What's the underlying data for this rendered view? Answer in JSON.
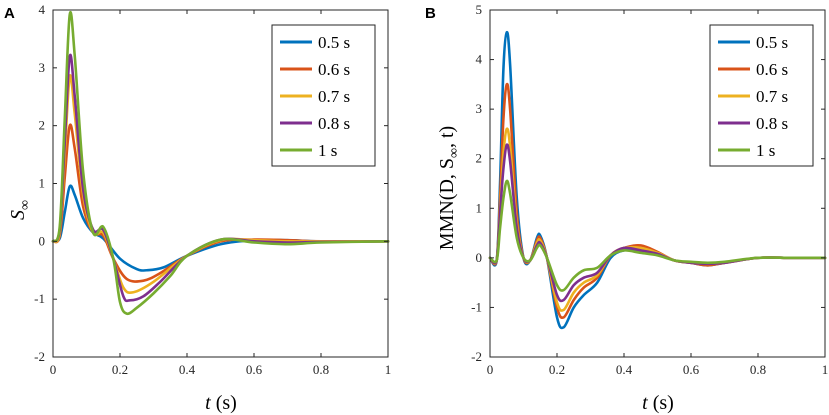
{
  "chart_data": [
    {
      "panel": "A",
      "type": "line",
      "xlabel": "t (s)",
      "xlabel_var": "t",
      "xlabel_unit": "(s)",
      "ylabel": "S∞",
      "ylabel_base": "S",
      "ylabel_sub": "∞",
      "xlim": [
        0,
        1
      ],
      "ylim": [
        -2,
        4
      ],
      "xticks": [
        0,
        0.2,
        0.4,
        0.6,
        0.8,
        1
      ],
      "xtick_labels": [
        "0",
        "0.2",
        "0.4",
        "0.6",
        "0.8",
        "1"
      ],
      "yticks": [
        -2,
        -1,
        0,
        1,
        2,
        3,
        4
      ],
      "ytick_labels": [
        "-2",
        "-1",
        "0",
        "1",
        "2",
        "3",
        "4"
      ],
      "legend_position": "top-right",
      "series": [
        {
          "name": "0.5 s",
          "color": "#0072BD",
          "points": [
            [
              0,
              0
            ],
            [
              0.02,
              0.05
            ],
            [
              0.035,
              0.5
            ],
            [
              0.05,
              0.95
            ],
            [
              0.065,
              0.8
            ],
            [
              0.09,
              0.4
            ],
            [
              0.12,
              0.15
            ],
            [
              0.15,
              0.05
            ],
            [
              0.2,
              -0.3
            ],
            [
              0.25,
              -0.48
            ],
            [
              0.28,
              -0.5
            ],
            [
              0.33,
              -0.45
            ],
            [
              0.4,
              -0.25
            ],
            [
              0.5,
              -0.05
            ],
            [
              0.6,
              0.02
            ],
            [
              0.7,
              0.02
            ],
            [
              0.8,
              0
            ],
            [
              1,
              0
            ]
          ]
        },
        {
          "name": "0.6 s",
          "color": "#D95319",
          "points": [
            [
              0,
              0
            ],
            [
              0.02,
              0.1
            ],
            [
              0.035,
              1.1
            ],
            [
              0.05,
              2.0
            ],
            [
              0.065,
              1.6
            ],
            [
              0.09,
              0.6
            ],
            [
              0.12,
              0.15
            ],
            [
              0.15,
              0.1
            ],
            [
              0.18,
              -0.3
            ],
            [
              0.22,
              -0.65
            ],
            [
              0.27,
              -0.68
            ],
            [
              0.32,
              -0.55
            ],
            [
              0.4,
              -0.25
            ],
            [
              0.5,
              0.0
            ],
            [
              0.6,
              0.03
            ],
            [
              0.7,
              0.02
            ],
            [
              0.8,
              0
            ],
            [
              1,
              0
            ]
          ]
        },
        {
          "name": "0.7 s",
          "color": "#EDB120",
          "points": [
            [
              0,
              0
            ],
            [
              0.02,
              0.15
            ],
            [
              0.035,
              1.5
            ],
            [
              0.05,
              2.85
            ],
            [
              0.065,
              2.2
            ],
            [
              0.09,
              0.8
            ],
            [
              0.12,
              0.15
            ],
            [
              0.15,
              0.15
            ],
            [
              0.18,
              -0.3
            ],
            [
              0.21,
              -0.8
            ],
            [
              0.24,
              -0.88
            ],
            [
              0.3,
              -0.7
            ],
            [
              0.4,
              -0.25
            ],
            [
              0.5,
              0.02
            ],
            [
              0.6,
              0.02
            ],
            [
              0.7,
              0.0
            ],
            [
              0.8,
              0
            ],
            [
              1,
              0
            ]
          ]
        },
        {
          "name": "0.8 s",
          "color": "#7E2F8E",
          "points": [
            [
              0,
              0
            ],
            [
              0.02,
              0.2
            ],
            [
              0.035,
              1.7
            ],
            [
              0.05,
              3.2
            ],
            [
              0.065,
              2.5
            ],
            [
              0.09,
              0.9
            ],
            [
              0.12,
              0.2
            ],
            [
              0.15,
              0.2
            ],
            [
              0.18,
              -0.3
            ],
            [
              0.21,
              -0.95
            ],
            [
              0.23,
              -1.02
            ],
            [
              0.27,
              -0.95
            ],
            [
              0.32,
              -0.7
            ],
            [
              0.4,
              -0.25
            ],
            [
              0.5,
              0.03
            ],
            [
              0.6,
              0.0
            ],
            [
              0.7,
              -0.02
            ],
            [
              0.8,
              -0.01
            ],
            [
              1,
              0
            ]
          ]
        },
        {
          "name": "1 s",
          "color": "#77AC30",
          "points": [
            [
              0,
              0
            ],
            [
              0.02,
              0.25
            ],
            [
              0.035,
              2.1
            ],
            [
              0.05,
              3.92
            ],
            [
              0.065,
              3.2
            ],
            [
              0.09,
              1.2
            ],
            [
              0.12,
              0.15
            ],
            [
              0.15,
              0.25
            ],
            [
              0.18,
              -0.3
            ],
            [
              0.2,
              -1.05
            ],
            [
              0.22,
              -1.25
            ],
            [
              0.25,
              -1.15
            ],
            [
              0.3,
              -0.9
            ],
            [
              0.35,
              -0.6
            ],
            [
              0.4,
              -0.25
            ],
            [
              0.5,
              0.03
            ],
            [
              0.6,
              -0.02
            ],
            [
              0.7,
              -0.05
            ],
            [
              0.8,
              -0.02
            ],
            [
              1,
              0
            ]
          ]
        }
      ]
    },
    {
      "panel": "B",
      "type": "line",
      "xlabel": "t (s)",
      "xlabel_var": "t",
      "xlabel_unit": "(s)",
      "ylabel": "MMN(D, S∞, t)",
      "ylabel_pre": "MMN(D, S",
      "ylabel_sub": "∞",
      "ylabel_post": ", t)",
      "xlim": [
        0,
        1
      ],
      "ylim": [
        -2,
        5
      ],
      "xticks": [
        0,
        0.2,
        0.4,
        0.6,
        0.8,
        1
      ],
      "xtick_labels": [
        "0",
        "0.2",
        "0.4",
        "0.6",
        "0.8",
        "1"
      ],
      "yticks": [
        -2,
        -1,
        0,
        1,
        2,
        3,
        4,
        5
      ],
      "ytick_labels": [
        "-2",
        "-1",
        "0",
        "1",
        "2",
        "3",
        "4",
        "5"
      ],
      "legend_position": "top-right",
      "series": [
        {
          "name": "0.5 s",
          "color": "#0072BD",
          "points": [
            [
              0,
              0
            ],
            [
              0.02,
              -0.05
            ],
            [
              0.03,
              1.5
            ],
            [
              0.04,
              3.8
            ],
            [
              0.05,
              4.55
            ],
            [
              0.06,
              3.9
            ],
            [
              0.08,
              1.2
            ],
            [
              0.1,
              0.0
            ],
            [
              0.12,
              -0.05
            ],
            [
              0.14,
              0.4
            ],
            [
              0.15,
              0.45
            ],
            [
              0.17,
              0.0
            ],
            [
              0.2,
              -1.2
            ],
            [
              0.22,
              -1.4
            ],
            [
              0.25,
              -1.0
            ],
            [
              0.28,
              -0.75
            ],
            [
              0.32,
              -0.5
            ],
            [
              0.36,
              0.0
            ],
            [
              0.4,
              0.15
            ],
            [
              0.45,
              0.15
            ],
            [
              0.5,
              0.1
            ],
            [
              0.55,
              -0.05
            ],
            [
              0.6,
              -0.1
            ],
            [
              0.65,
              -0.15
            ],
            [
              0.7,
              -0.1
            ],
            [
              0.8,
              0.0
            ],
            [
              0.9,
              0.0
            ],
            [
              1,
              0
            ]
          ]
        },
        {
          "name": "0.6 s",
          "color": "#D95319",
          "points": [
            [
              0,
              0
            ],
            [
              0.02,
              -0.05
            ],
            [
              0.03,
              1.2
            ],
            [
              0.04,
              2.8
            ],
            [
              0.05,
              3.5
            ],
            [
              0.06,
              3.0
            ],
            [
              0.08,
              0.9
            ],
            [
              0.1,
              0.0
            ],
            [
              0.12,
              -0.05
            ],
            [
              0.14,
              0.35
            ],
            [
              0.15,
              0.4
            ],
            [
              0.17,
              0.0
            ],
            [
              0.2,
              -1.0
            ],
            [
              0.22,
              -1.2
            ],
            [
              0.25,
              -0.85
            ],
            [
              0.28,
              -0.6
            ],
            [
              0.32,
              -0.4
            ],
            [
              0.36,
              0.05
            ],
            [
              0.4,
              0.2
            ],
            [
              0.45,
              0.25
            ],
            [
              0.5,
              0.12
            ],
            [
              0.55,
              -0.05
            ],
            [
              0.6,
              -0.1
            ],
            [
              0.65,
              -0.15
            ],
            [
              0.7,
              -0.1
            ],
            [
              0.8,
              0.0
            ],
            [
              0.9,
              0.0
            ],
            [
              1,
              0
            ]
          ]
        },
        {
          "name": "0.7 s",
          "color": "#EDB120",
          "points": [
            [
              0,
              0
            ],
            [
              0.02,
              -0.05
            ],
            [
              0.03,
              1.0
            ],
            [
              0.04,
              2.1
            ],
            [
              0.05,
              2.6
            ],
            [
              0.06,
              2.25
            ],
            [
              0.08,
              0.7
            ],
            [
              0.1,
              0.0
            ],
            [
              0.12,
              -0.05
            ],
            [
              0.14,
              0.3
            ],
            [
              0.15,
              0.35
            ],
            [
              0.17,
              0.0
            ],
            [
              0.2,
              -0.9
            ],
            [
              0.22,
              -1.05
            ],
            [
              0.25,
              -0.7
            ],
            [
              0.28,
              -0.5
            ],
            [
              0.32,
              -0.35
            ],
            [
              0.36,
              0.05
            ],
            [
              0.4,
              0.2
            ],
            [
              0.45,
              0.2
            ],
            [
              0.5,
              0.1
            ],
            [
              0.55,
              -0.05
            ],
            [
              0.6,
              -0.1
            ],
            [
              0.65,
              -0.12
            ],
            [
              0.7,
              -0.1
            ],
            [
              0.8,
              0.0
            ],
            [
              0.9,
              0.0
            ],
            [
              1,
              0
            ]
          ]
        },
        {
          "name": "0.8 s",
          "color": "#7E2F8E",
          "points": [
            [
              0,
              0
            ],
            [
              0.02,
              -0.05
            ],
            [
              0.03,
              0.9
            ],
            [
              0.04,
              1.8
            ],
            [
              0.05,
              2.28
            ],
            [
              0.06,
              1.95
            ],
            [
              0.08,
              0.6
            ],
            [
              0.1,
              0.0
            ],
            [
              0.12,
              -0.05
            ],
            [
              0.14,
              0.25
            ],
            [
              0.15,
              0.3
            ],
            [
              0.17,
              0.0
            ],
            [
              0.2,
              -0.75
            ],
            [
              0.22,
              -0.85
            ],
            [
              0.25,
              -0.55
            ],
            [
              0.28,
              -0.4
            ],
            [
              0.32,
              -0.3
            ],
            [
              0.36,
              0.05
            ],
            [
              0.4,
              0.2
            ],
            [
              0.45,
              0.15
            ],
            [
              0.5,
              0.08
            ],
            [
              0.55,
              -0.05
            ],
            [
              0.6,
              -0.1
            ],
            [
              0.65,
              -0.12
            ],
            [
              0.7,
              -0.1
            ],
            [
              0.8,
              0.0
            ],
            [
              0.9,
              0.0
            ],
            [
              1,
              0
            ]
          ]
        },
        {
          "name": "1 s",
          "color": "#77AC30",
          "points": [
            [
              0,
              0
            ],
            [
              0.02,
              -0.05
            ],
            [
              0.03,
              0.6
            ],
            [
              0.04,
              1.2
            ],
            [
              0.05,
              1.55
            ],
            [
              0.06,
              1.3
            ],
            [
              0.08,
              0.4
            ],
            [
              0.1,
              0.0
            ],
            [
              0.12,
              -0.05
            ],
            [
              0.14,
              0.2
            ],
            [
              0.15,
              0.25
            ],
            [
              0.17,
              0.0
            ],
            [
              0.2,
              -0.55
            ],
            [
              0.22,
              -0.65
            ],
            [
              0.25,
              -0.4
            ],
            [
              0.28,
              -0.25
            ],
            [
              0.32,
              -0.2
            ],
            [
              0.36,
              0.05
            ],
            [
              0.4,
              0.15
            ],
            [
              0.45,
              0.1
            ],
            [
              0.5,
              0.05
            ],
            [
              0.55,
              -0.05
            ],
            [
              0.6,
              -0.08
            ],
            [
              0.65,
              -0.1
            ],
            [
              0.7,
              -0.08
            ],
            [
              0.8,
              0.0
            ],
            [
              0.9,
              0.0
            ],
            [
              1,
              0
            ]
          ]
        }
      ]
    }
  ]
}
